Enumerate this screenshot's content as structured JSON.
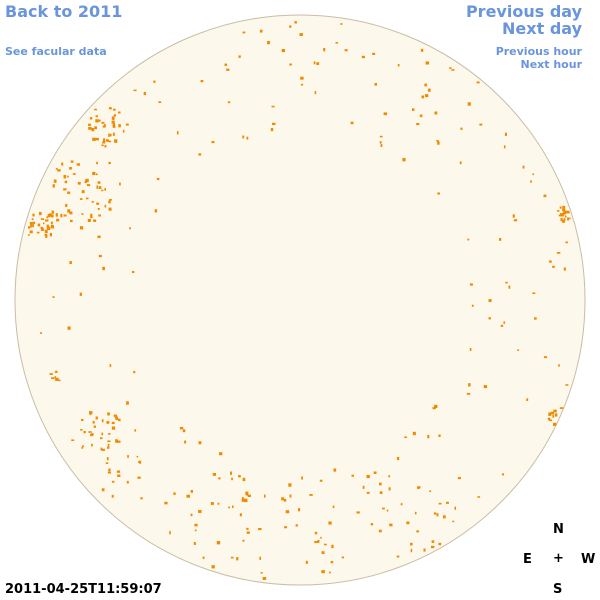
{
  "links": {
    "back": "Back to 2011",
    "facular": "See facular data",
    "previous_day": "Previous day",
    "next_day": "Next day",
    "previous_hour": "Previous hour",
    "next_hour": "Next hour"
  },
  "timestamp": "2011-04-25T11:59:07",
  "compass": {
    "north": "N",
    "east": "E",
    "center": "+",
    "west": "W",
    "south": "S"
  }
}
